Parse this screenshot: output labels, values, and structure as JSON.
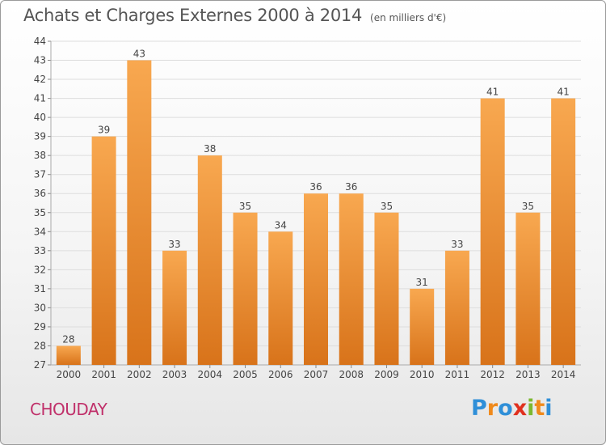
{
  "title": "Achats et Charges Externes 2000 à 2014",
  "unit": "(en milliers d'€)",
  "commune": "CHOUDAY",
  "logo": {
    "letters": [
      "P",
      "r",
      "o",
      "x",
      "i",
      "t",
      "i"
    ],
    "colors": [
      "#2f8fd8",
      "#f08a1c",
      "#2f8fd8",
      "#e0301e",
      "#7cb82f",
      "#f08a1c",
      "#2f8fd8"
    ]
  },
  "colors": {
    "bar_light": "#f8a850",
    "bar_dark": "#d8731a",
    "grid": "#dddddd"
  },
  "chart_data": {
    "type": "bar",
    "title": "Achats et Charges Externes 2000 à 2014",
    "subtitle": "(en milliers d'€)",
    "categories": [
      "2000",
      "2001",
      "2002",
      "2003",
      "2004",
      "2005",
      "2006",
      "2007",
      "2008",
      "2009",
      "2010",
      "2011",
      "2012",
      "2013",
      "2014"
    ],
    "values": [
      28,
      39,
      43,
      33,
      38,
      35,
      34,
      36,
      36,
      35,
      31,
      33,
      41,
      35,
      41
    ],
    "ylim": [
      27,
      44
    ],
    "yticks": [
      27,
      28,
      29,
      30,
      31,
      32,
      33,
      34,
      35,
      36,
      37,
      38,
      39,
      40,
      41,
      42,
      43,
      44
    ],
    "grid": true,
    "data_labels": true
  }
}
